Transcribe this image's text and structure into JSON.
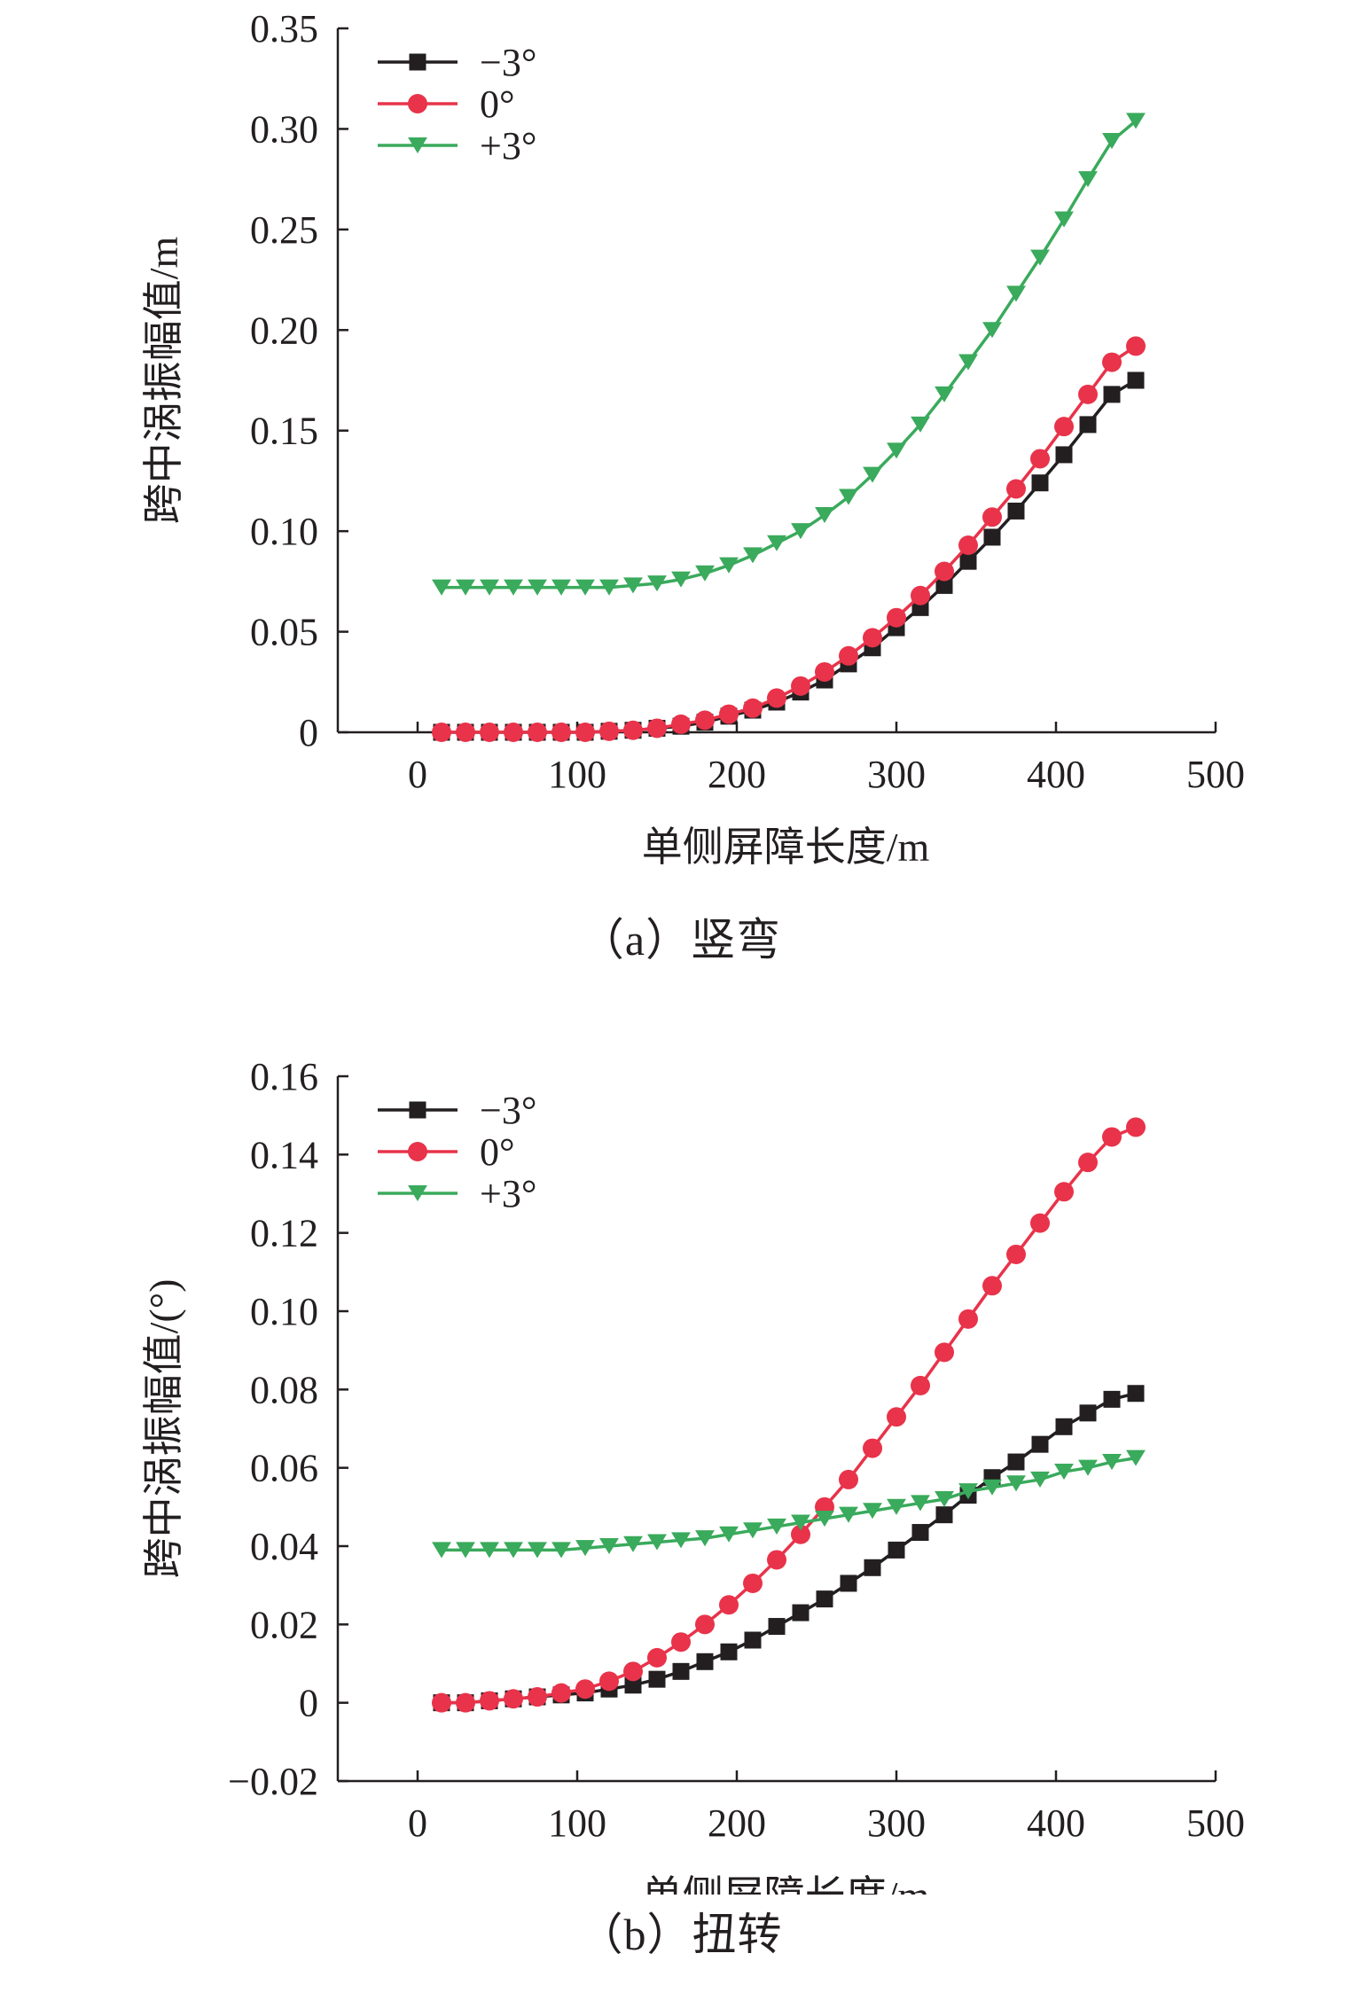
{
  "chart_data": [
    {
      "type": "line",
      "caption": "（a）竖弯",
      "xlabel": "单侧屏障长度/m",
      "ylabel": "跨中涡振幅值/m",
      "xlim": [
        -50,
        500
      ],
      "ylim": [
        0,
        0.35
      ],
      "xticks": [
        0,
        100,
        200,
        300,
        400,
        500
      ],
      "xtick_labels": [
        "0",
        "100",
        "200",
        "300",
        "400",
        "500"
      ],
      "yticks": [
        0,
        0.05,
        0.1,
        0.15,
        0.2,
        0.25,
        0.3,
        0.35
      ],
      "ytick_labels": [
        "0",
        "0.05",
        "0.10",
        "0.15",
        "0.20",
        "0.25",
        "0.30",
        "0.35"
      ],
      "grid": false,
      "legend_position": "top-left",
      "x": [
        15,
        30,
        45,
        60,
        75,
        90,
        105,
        120,
        135,
        150,
        165,
        180,
        195,
        210,
        225,
        240,
        255,
        270,
        285,
        300,
        315,
        330,
        345,
        360,
        375,
        390,
        405,
        420,
        435,
        450
      ],
      "series": [
        {
          "name": "−3°",
          "color": "#231f20",
          "marker": "square",
          "values": [
            0.0,
            0.0,
            0.0,
            0.0,
            0.0,
            0.0,
            0.0,
            0.0005,
            0.001,
            0.002,
            0.003,
            0.005,
            0.008,
            0.011,
            0.015,
            0.02,
            0.026,
            0.034,
            0.042,
            0.052,
            0.062,
            0.073,
            0.085,
            0.097,
            0.11,
            0.124,
            0.138,
            0.153,
            0.168,
            0.175
          ]
        },
        {
          "name": "0°",
          "color": "#e8334a",
          "marker": "circle",
          "values": [
            0.0,
            0.0,
            0.0,
            0.0,
            0.0,
            0.0,
            0.0,
            0.0005,
            0.001,
            0.002,
            0.004,
            0.006,
            0.009,
            0.012,
            0.017,
            0.023,
            0.03,
            0.038,
            0.047,
            0.057,
            0.068,
            0.08,
            0.093,
            0.107,
            0.121,
            0.136,
            0.152,
            0.168,
            0.184,
            0.192
          ]
        },
        {
          "name": "+3°",
          "color": "#3aaa5c",
          "marker": "triangle-down",
          "values": [
            0.072,
            0.072,
            0.072,
            0.072,
            0.072,
            0.072,
            0.072,
            0.072,
            0.073,
            0.074,
            0.076,
            0.079,
            0.083,
            0.088,
            0.094,
            0.1,
            0.108,
            0.117,
            0.128,
            0.14,
            0.153,
            0.168,
            0.184,
            0.2,
            0.218,
            0.236,
            0.255,
            0.275,
            0.294,
            0.304
          ]
        }
      ]
    },
    {
      "type": "line",
      "caption": "（b）扭转",
      "xlabel": "单侧屏障长度/m",
      "ylabel": "跨中涡振幅值/(°)",
      "xlim": [
        -50,
        500
      ],
      "ylim": [
        -0.02,
        0.16
      ],
      "xticks": [
        0,
        100,
        200,
        300,
        400,
        500
      ],
      "xtick_labels": [
        "0",
        "100",
        "200",
        "300",
        "400",
        "500"
      ],
      "yticks": [
        -0.02,
        0,
        0.02,
        0.04,
        0.06,
        0.08,
        0.1,
        0.12,
        0.14,
        0.16
      ],
      "ytick_labels": [
        "−0.02",
        "0",
        "0.02",
        "0.04",
        "0.06",
        "0.08",
        "0.10",
        "0.12",
        "0.14",
        "0.16"
      ],
      "grid": false,
      "legend_position": "top-left",
      "x": [
        15,
        30,
        45,
        60,
        75,
        90,
        105,
        120,
        135,
        150,
        165,
        180,
        195,
        210,
        225,
        240,
        255,
        270,
        285,
        300,
        315,
        330,
        345,
        360,
        375,
        390,
        405,
        420,
        435,
        450
      ],
      "series": [
        {
          "name": "−3°",
          "color": "#231f20",
          "marker": "square",
          "values": [
            0.0,
            0.0,
            0.0005,
            0.001,
            0.0015,
            0.002,
            0.0025,
            0.0035,
            0.0045,
            0.006,
            0.008,
            0.0105,
            0.013,
            0.016,
            0.0195,
            0.023,
            0.0265,
            0.0305,
            0.0345,
            0.039,
            0.0435,
            0.048,
            0.053,
            0.0575,
            0.0615,
            0.066,
            0.0705,
            0.074,
            0.0775,
            0.079
          ]
        },
        {
          "name": "0°",
          "color": "#e8334a",
          "marker": "circle",
          "values": [
            0.0,
            0.0,
            0.0005,
            0.001,
            0.0015,
            0.0025,
            0.0035,
            0.0055,
            0.008,
            0.0115,
            0.0155,
            0.02,
            0.025,
            0.0305,
            0.0365,
            0.043,
            0.05,
            0.057,
            0.065,
            0.073,
            0.081,
            0.0895,
            0.098,
            0.1065,
            0.1145,
            0.1225,
            0.1305,
            0.138,
            0.1445,
            0.147
          ]
        },
        {
          "name": "+3°",
          "color": "#3aaa5c",
          "marker": "triangle-down",
          "values": [
            0.039,
            0.039,
            0.039,
            0.039,
            0.039,
            0.039,
            0.0395,
            0.04,
            0.0405,
            0.041,
            0.0415,
            0.042,
            0.043,
            0.044,
            0.045,
            0.046,
            0.047,
            0.048,
            0.049,
            0.05,
            0.051,
            0.052,
            0.054,
            0.055,
            0.056,
            0.057,
            0.059,
            0.06,
            0.0615,
            0.0625
          ]
        }
      ]
    }
  ]
}
